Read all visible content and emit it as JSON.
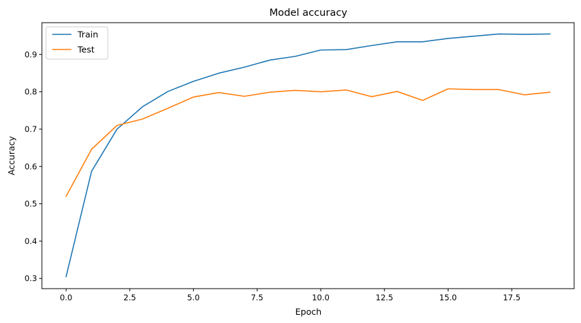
{
  "chart_data": {
    "type": "line",
    "title": "Model accuracy",
    "xlabel": "Epoch",
    "ylabel": "Accuracy",
    "xlim": [
      -0.95,
      19.95
    ],
    "ylim": [
      0.2728,
      0.9852
    ],
    "xticks": [
      0.0,
      2.5,
      5.0,
      7.5,
      10.0,
      12.5,
      15.0,
      17.5
    ],
    "xtick_labels": [
      "0.0",
      "2.5",
      "5.0",
      "7.5",
      "10.0",
      "12.5",
      "15.0",
      "17.5"
    ],
    "yticks": [
      0.3,
      0.4,
      0.5,
      0.6,
      0.7,
      0.8,
      0.9
    ],
    "ytick_labels": [
      "0.3",
      "0.4",
      "0.5",
      "0.6",
      "0.7",
      "0.8",
      "0.9"
    ],
    "grid": false,
    "legend_position": "top-left",
    "x": [
      0,
      1,
      2,
      3,
      4,
      5,
      6,
      7,
      8,
      9,
      10,
      11,
      12,
      13,
      14,
      15,
      16,
      17,
      18,
      19
    ],
    "series": [
      {
        "name": "Train",
        "color": "#1f77b4",
        "values": [
          0.305,
          0.587,
          0.7,
          0.76,
          0.801,
          0.828,
          0.85,
          0.866,
          0.885,
          0.895,
          0.912,
          0.913,
          0.924,
          0.934,
          0.934,
          0.943,
          0.949,
          0.955,
          0.954,
          0.955
        ]
      },
      {
        "name": "Test",
        "color": "#ff7f0e",
        "values": [
          0.52,
          0.646,
          0.71,
          0.727,
          0.756,
          0.786,
          0.798,
          0.788,
          0.799,
          0.804,
          0.8,
          0.805,
          0.787,
          0.801,
          0.777,
          0.808,
          0.806,
          0.806,
          0.792,
          0.799
        ]
      }
    ]
  }
}
